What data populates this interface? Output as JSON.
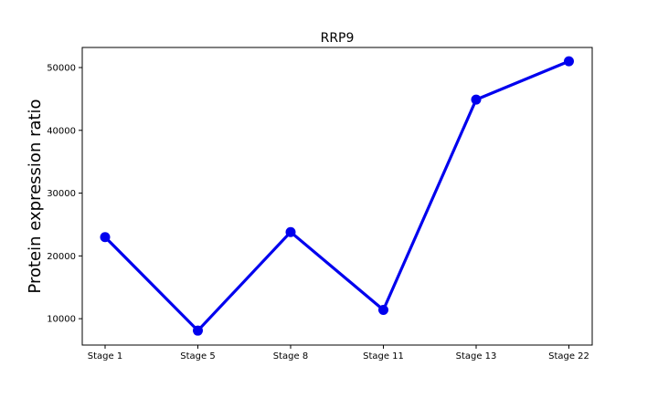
{
  "chart_data": {
    "type": "line",
    "title": "RRP9",
    "xlabel": "",
    "ylabel": "Protein expression ratio",
    "categories": [
      "Stage 1",
      "Stage 5",
      "Stage 8",
      "Stage 11",
      "Stage 13",
      "Stage 22"
    ],
    "series": [
      {
        "values": [
          23000,
          8100,
          23800,
          11400,
          44900,
          51000
        ],
        "color": "#0000ee"
      }
    ],
    "ylim": [
      5800,
      53200
    ],
    "yticks": [
      10000,
      20000,
      30000,
      40000,
      50000
    ],
    "ytick_labels": [
      "10000",
      "20000",
      "30000",
      "40000",
      "50000"
    ],
    "grid": false,
    "legend": "none"
  }
}
